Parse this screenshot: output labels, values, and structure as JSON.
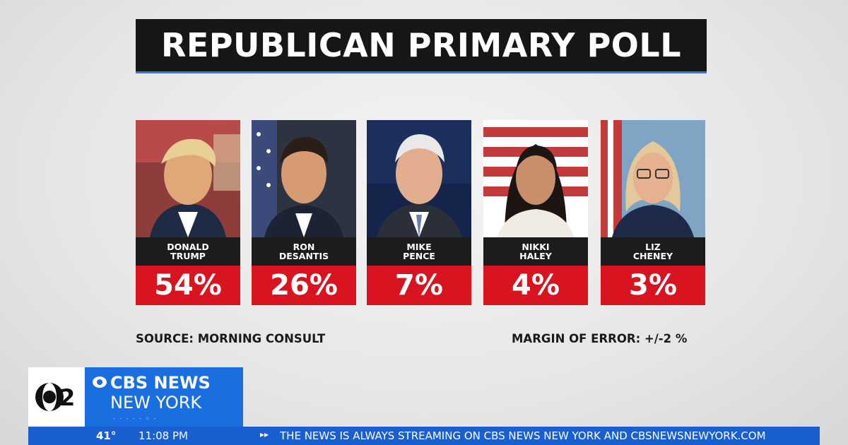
{
  "title": "REPUBLICAN PRIMARY POLL",
  "candidates": [
    {
      "name_line1": "DONALD",
      "name_line2": "TRUMP",
      "percent": "54%"
    },
    {
      "name_line1": "RON",
      "name_line2": "DESANTIS",
      "percent": "26%"
    },
    {
      "name_line1": "MIKE",
      "name_line2": "PENCE",
      "percent": "7%"
    },
    {
      "name_line1": "NIKKI",
      "name_line2": "HALEY",
      "percent": "4%"
    },
    {
      "name_line1": "LIZ",
      "name_line2": "CHENEY",
      "percent": "3%"
    }
  ],
  "source": "SOURCE: MORNING CONSULT",
  "margin": "MARGIN OF ERROR: +/-2 %",
  "brand": {
    "channel_logo": "2",
    "line1": "CBS NEWS",
    "line2": "NEW YORK"
  },
  "ticker": {
    "temperature": "41°",
    "time": "11:08 PM",
    "arrow_icon": "double-chevron-right-icon",
    "text": "THE NEWS IS ALWAYS STREAMING ON CBS NEWS NEW YORK AND CBSNEWSNEWYORK.COM"
  },
  "colors": {
    "title_bg": "#161616",
    "title_underline": "#2f7bd6",
    "percent_bg": "#d7141f",
    "name_bg": "#1c1c1c",
    "brand_blue": "#1a6fe0",
    "ticker_blue": "#1a5fd0"
  }
}
